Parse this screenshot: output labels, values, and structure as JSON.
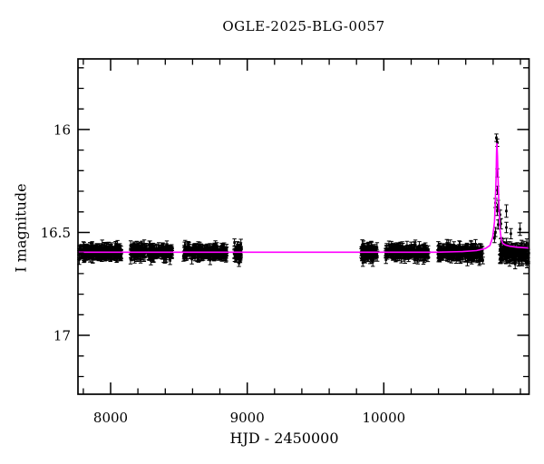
{
  "title": "OGLE-2025-BLG-0057",
  "chart_data": {
    "type": "scatter",
    "title": "OGLE-2025-BLG-0057",
    "xlabel": "HJD - 2450000",
    "ylabel": "I magnitude",
    "x_range": [
      7761,
      11063
    ],
    "y_range_bottom_top": [
      17.286,
      15.657
    ],
    "y_axis_inverted": true,
    "x_ticks_major": [
      8000,
      9000,
      10000
    ],
    "x_tick_labels": [
      "8000",
      "9000",
      "10000"
    ],
    "x_tick_minor_step": 200,
    "y_ticks_major": [
      16,
      16.5,
      17
    ],
    "y_tick_labels": [
      "16",
      "16.5",
      "17"
    ],
    "y_tick_minor_step": 0.1,
    "grid": false,
    "legend": "none",
    "baseline_mag": 16.6,
    "peak_mag": 16.04,
    "peak_hjd": 10828,
    "colors": {
      "points": "#000000",
      "model_curve": "#ff00ff",
      "frame": "#000000",
      "background": "#ffffff"
    },
    "seasons": [
      {
        "hjd_min": 7768,
        "hjd_max": 8080,
        "n": 270,
        "mag_mean": 16.597,
        "mag_sigma": 0.0155,
        "err_mag": 0.019
      },
      {
        "hjd_min": 8146,
        "hjd_max": 8452,
        "n": 240,
        "mag_mean": 16.597,
        "mag_sigma": 0.0155,
        "err_mag": 0.019
      },
      {
        "hjd_min": 8532,
        "hjd_max": 8850,
        "n": 260,
        "mag_mean": 16.596,
        "mag_sigma": 0.0155,
        "err_mag": 0.019
      },
      {
        "hjd_min": 8904,
        "hjd_max": 8957,
        "n": 55,
        "mag_mean": 16.598,
        "mag_sigma": 0.021,
        "err_mag": 0.021
      },
      {
        "hjd_min": 9834,
        "hjd_max": 9953,
        "n": 95,
        "mag_mean": 16.598,
        "mag_sigma": 0.02,
        "err_mag": 0.02
      },
      {
        "hjd_min": 10013,
        "hjd_max": 10325,
        "n": 230,
        "mag_mean": 16.596,
        "mag_sigma": 0.0155,
        "err_mag": 0.019
      },
      {
        "hjd_min": 10398,
        "hjd_max": 10730,
        "n": 250,
        "mag_mean": 16.598,
        "mag_sigma": 0.0165,
        "err_mag": 0.02
      },
      {
        "hjd_min": 10850,
        "hjd_max": 11062,
        "n": 160,
        "mag_mean": 16.6,
        "mag_sigma": 0.022,
        "err_mag": 0.022
      }
    ],
    "peak_points": [
      [
        10824,
        16.04,
        0.018
      ],
      [
        10831,
        16.064,
        0.018
      ],
      [
        10831,
        16.211,
        0.02
      ],
      [
        10831,
        16.295,
        0.02
      ],
      [
        10817,
        16.357,
        0.022
      ],
      [
        10837,
        16.366,
        0.022
      ],
      [
        10831,
        16.396,
        0.022
      ],
      [
        10851,
        16.414,
        0.022
      ],
      [
        10837,
        16.462,
        0.022
      ],
      [
        10817,
        16.498,
        0.022
      ],
      [
        10810,
        16.528,
        0.022
      ],
      [
        10857,
        16.458,
        0.025
      ],
      [
        10897,
        16.396,
        0.03
      ],
      [
        10897,
        16.476,
        0.025
      ],
      [
        10930,
        16.506,
        0.025
      ],
      [
        10997,
        16.484,
        0.03
      ]
    ],
    "model_curve": [
      [
        7761,
        16.596
      ],
      [
        9000,
        16.596
      ],
      [
        9800,
        16.596
      ],
      [
        10379,
        16.596
      ],
      [
        10578,
        16.593
      ],
      [
        10678,
        16.588
      ],
      [
        10744,
        16.578
      ],
      [
        10777,
        16.563
      ],
      [
        10797,
        16.523
      ],
      [
        10810,
        16.448
      ],
      [
        10817,
        16.338
      ],
      [
        10822,
        16.22
      ],
      [
        10825,
        16.12
      ],
      [
        10827,
        16.072
      ],
      [
        10828,
        16.068
      ],
      [
        10829,
        16.08
      ],
      [
        10832,
        16.13
      ],
      [
        10837,
        16.25
      ],
      [
        10844,
        16.4
      ],
      [
        10851,
        16.49
      ],
      [
        10860,
        16.533
      ],
      [
        10870,
        16.552
      ],
      [
        10890,
        16.561
      ],
      [
        10923,
        16.567
      ],
      [
        10976,
        16.572
      ],
      [
        11063,
        16.576
      ]
    ]
  }
}
